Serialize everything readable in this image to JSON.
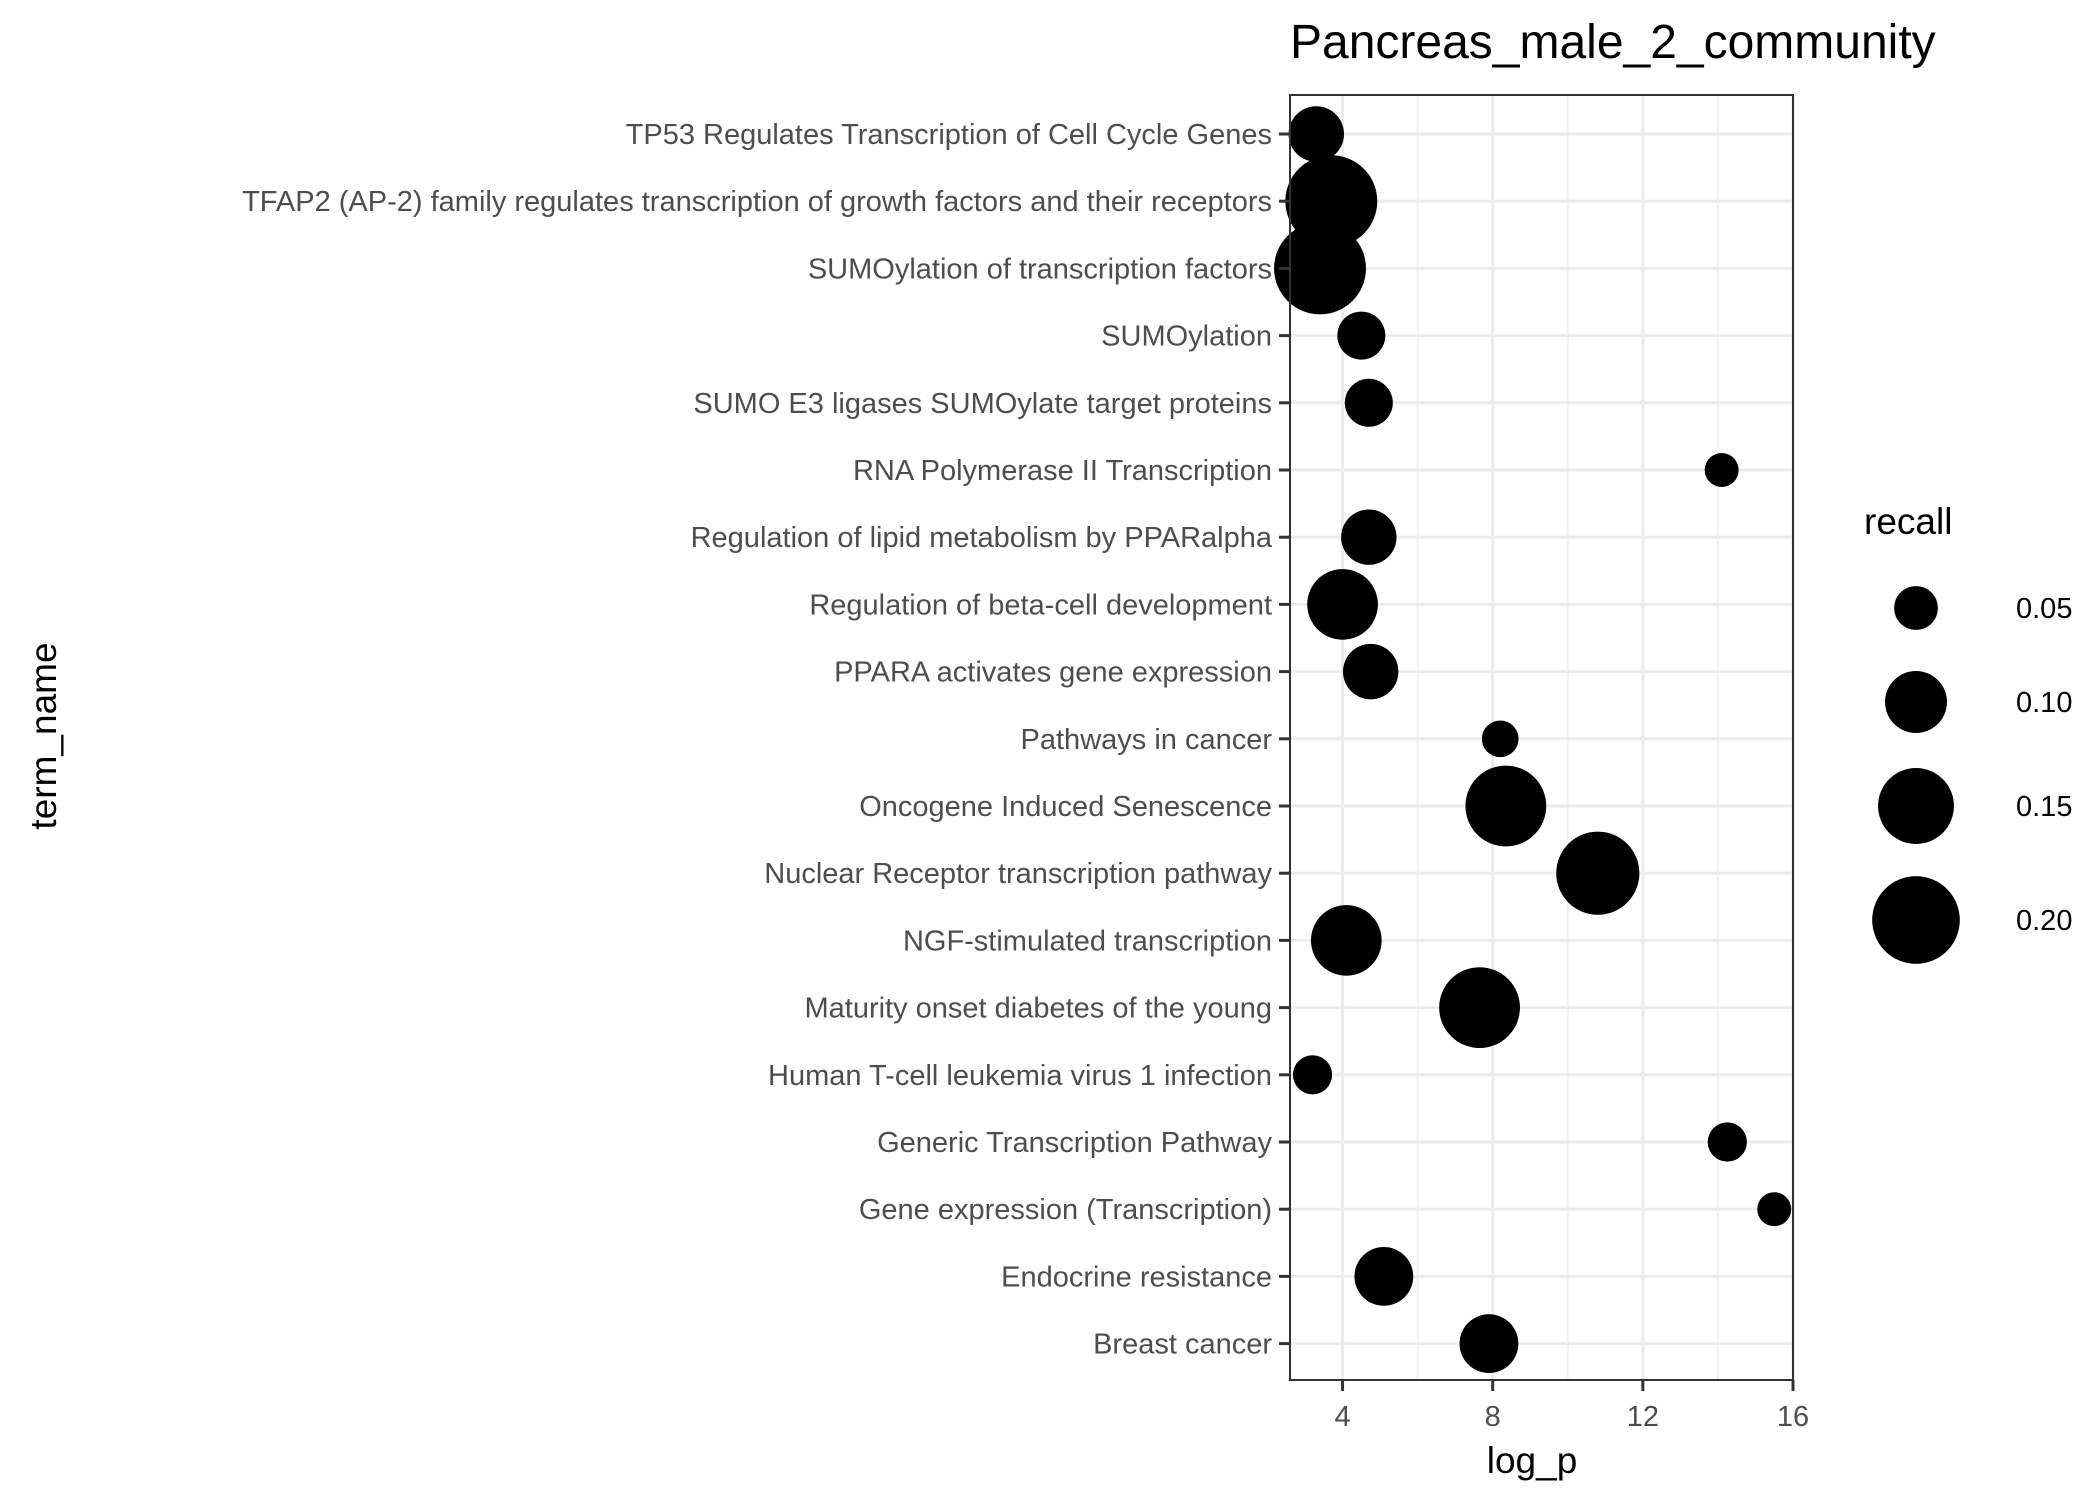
{
  "chart_data": {
    "type": "scatter",
    "title": "Pancreas_male_2_community",
    "xlabel": "log_p",
    "ylabel": "term_name",
    "xlim": [
      2.6,
      16.0
    ],
    "xticks": [
      4,
      8,
      12,
      16
    ],
    "grid": true,
    "legend": {
      "title": "recall",
      "placement": "right",
      "entries": [
        {
          "label": "0.05",
          "value": 0.05
        },
        {
          "label": "0.10",
          "value": 0.1
        },
        {
          "label": "0.15",
          "value": 0.15
        },
        {
          "label": "0.20",
          "value": 0.2
        }
      ]
    },
    "categories": [
      "TP53 Regulates Transcription of Cell Cycle Genes",
      "TFAP2 (AP-2) family regulates transcription of growth factors and their receptors",
      "SUMOylation of transcription factors",
      "SUMOylation",
      "SUMO E3 ligases SUMOylate target proteins",
      "RNA Polymerase II Transcription",
      "Regulation of lipid metabolism by PPARalpha",
      "Regulation of beta-cell development",
      "PPARA activates gene expression",
      "Pathways in cancer",
      "Oncogene Induced Senescence",
      "Nuclear Receptor transcription pathway",
      "NGF-stimulated transcription",
      "Maturity onset diabetes of the young",
      "Human T-cell leukemia virus 1 infection",
      "Generic Transcription Pathway",
      "Gene expression (Transcription)",
      "Endocrine resistance",
      "Breast cancer"
    ],
    "points": [
      {
        "term": "TP53 Regulates Transcription of Cell Cycle Genes",
        "log_p": 3.3,
        "recall": 0.08
      },
      {
        "term": "TFAP2 (AP-2) family regulates transcription of growth factors and their receptors",
        "log_p": 3.7,
        "recall": 0.22
      },
      {
        "term": "SUMOylation of transcription factors",
        "log_p": 3.4,
        "recall": 0.22
      },
      {
        "term": "SUMOylation",
        "log_p": 4.5,
        "recall": 0.06
      },
      {
        "term": "SUMO E3 ligases SUMOylate target proteins",
        "log_p": 4.7,
        "recall": 0.06
      },
      {
        "term": "RNA Polymerase II Transcription",
        "log_p": 14.1,
        "recall": 0.03
      },
      {
        "term": "Regulation of lipid metabolism by PPARalpha",
        "log_p": 4.7,
        "recall": 0.08
      },
      {
        "term": "Regulation of beta-cell development",
        "log_p": 4.0,
        "recall": 0.13
      },
      {
        "term": "PPARA activates gene expression",
        "log_p": 4.75,
        "recall": 0.08
      },
      {
        "term": "Pathways in cancer",
        "log_p": 8.2,
        "recall": 0.035
      },
      {
        "term": "Oncogene Induced Senescence",
        "log_p": 8.35,
        "recall": 0.17
      },
      {
        "term": "Nuclear Receptor transcription pathway",
        "log_p": 10.8,
        "recall": 0.18
      },
      {
        "term": "NGF-stimulated transcription",
        "log_p": 4.1,
        "recall": 0.13
      },
      {
        "term": "Maturity onset diabetes of the young",
        "log_p": 7.65,
        "recall": 0.17
      },
      {
        "term": "Human T-cell leukemia virus 1 infection",
        "log_p": 3.2,
        "recall": 0.04
      },
      {
        "term": "Generic Transcription Pathway",
        "log_p": 14.25,
        "recall": 0.04
      },
      {
        "term": "Gene expression (Transcription)",
        "log_p": 15.5,
        "recall": 0.03
      },
      {
        "term": "Endocrine resistance",
        "log_p": 5.1,
        "recall": 0.09
      },
      {
        "term": "Breast cancer",
        "log_p": 7.9,
        "recall": 0.09
      }
    ]
  }
}
